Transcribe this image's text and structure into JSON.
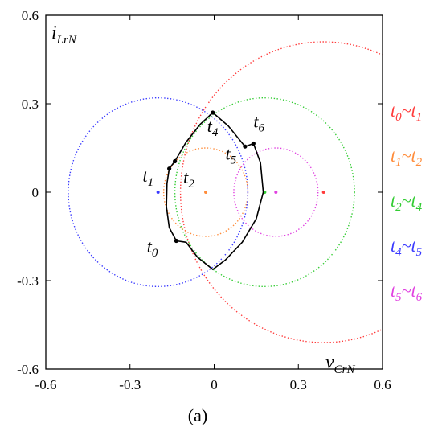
{
  "chart_data": {
    "type": "scatter",
    "caption": "(a)",
    "xlim": [
      -0.6,
      0.6
    ],
    "ylim": [
      -0.6,
      0.6
    ],
    "xticks": [
      -0.6,
      -0.3,
      0,
      0.3,
      0.6
    ],
    "yticks": [
      -0.6,
      -0.3,
      0,
      0.3,
      0.6
    ],
    "xtick_labels": [
      "-0.6",
      "-0.3",
      "0",
      "0.3",
      "0.6"
    ],
    "ytick_labels": [
      "-0.6",
      "-0.3",
      "0",
      "0.3",
      "0.6"
    ],
    "xlabel": {
      "main": "v",
      "sub": "CrN"
    },
    "ylabel": {
      "main": "i",
      "sub": "LrN"
    },
    "grid": false,
    "legend_placement": "right",
    "legend": [
      {
        "from_main": "t",
        "from_sub": "0",
        "sep": "~",
        "to_main": "t",
        "to_sub": "1",
        "color": "#ff3b3b"
      },
      {
        "from_main": "t",
        "from_sub": "1",
        "sep": "~",
        "to_main": "t",
        "to_sub": "2",
        "color": "#ff8c3a"
      },
      {
        "from_main": "t",
        "from_sub": "2",
        "sep": "~",
        "to_main": "t",
        "to_sub": "4",
        "color": "#33cc33"
      },
      {
        "from_main": "t",
        "from_sub": "4",
        "sep": "~",
        "to_main": "t",
        "to_sub": "5",
        "color": "#3a3aff"
      },
      {
        "from_main": "t",
        "from_sub": "5",
        "sep": "~",
        "to_main": "t",
        "to_sub": "6",
        "color": "#e040e0"
      }
    ],
    "circles": [
      {
        "interval": "t0~t1",
        "center": [
          0.39,
          0.0
        ],
        "radius": 0.51,
        "color": "#ff3b3b"
      },
      {
        "interval": "t1~t2",
        "center": [
          -0.03,
          0.0
        ],
        "radius": 0.15,
        "color": "#ff8c3a"
      },
      {
        "interval": "t2~t4",
        "center": [
          0.18,
          0.0
        ],
        "radius": 0.32,
        "color": "#33cc33"
      },
      {
        "interval": "t4~t5",
        "center": [
          -0.2,
          0.0
        ],
        "radius": 0.32,
        "color": "#3a3aff"
      },
      {
        "interval": "t5~t6",
        "center": [
          0.22,
          0.0
        ],
        "radius": 0.15,
        "color": "#e040e0"
      }
    ],
    "points": [
      {
        "main": "t",
        "sub": "0",
        "x": -0.135,
        "y": -0.165,
        "label_dx": -0.105,
        "label_dy": -0.04
      },
      {
        "main": "t",
        "sub": "1",
        "x": -0.16,
        "y": 0.08,
        "label_dx": -0.095,
        "label_dy": -0.045
      },
      {
        "main": "t",
        "sub": "2",
        "x": -0.14,
        "y": 0.105,
        "label_dx": 0.03,
        "label_dy": -0.075
      },
      {
        "main": "t",
        "sub": "4",
        "x": -0.005,
        "y": 0.27,
        "label_dx": -0.02,
        "label_dy": -0.065
      },
      {
        "main": "t",
        "sub": "5",
        "x": 0.11,
        "y": 0.155,
        "label_dx": -0.07,
        "label_dy": -0.045
      },
      {
        "main": "t",
        "sub": "6",
        "x": 0.14,
        "y": 0.165,
        "label_dx": 0.0,
        "label_dy": 0.055
      }
    ],
    "trajectory": [
      [
        -0.135,
        -0.165
      ],
      [
        -0.16,
        -0.12
      ],
      [
        -0.17,
        -0.05
      ],
      [
        -0.168,
        0.03
      ],
      [
        -0.16,
        0.08
      ],
      [
        -0.14,
        0.105
      ],
      [
        -0.1,
        0.17
      ],
      [
        -0.05,
        0.23
      ],
      [
        -0.005,
        0.27
      ],
      [
        0.05,
        0.225
      ],
      [
        0.11,
        0.155
      ],
      [
        0.14,
        0.165
      ],
      [
        0.165,
        0.1
      ],
      [
        0.175,
        0.0
      ],
      [
        0.15,
        -0.09
      ],
      [
        0.1,
        -0.17
      ],
      [
        0.04,
        -0.23
      ],
      [
        -0.005,
        -0.262
      ],
      [
        -0.06,
        -0.22
      ],
      [
        -0.1,
        -0.17
      ],
      [
        -0.135,
        -0.165
      ]
    ],
    "trajectory_color": "#000000"
  }
}
